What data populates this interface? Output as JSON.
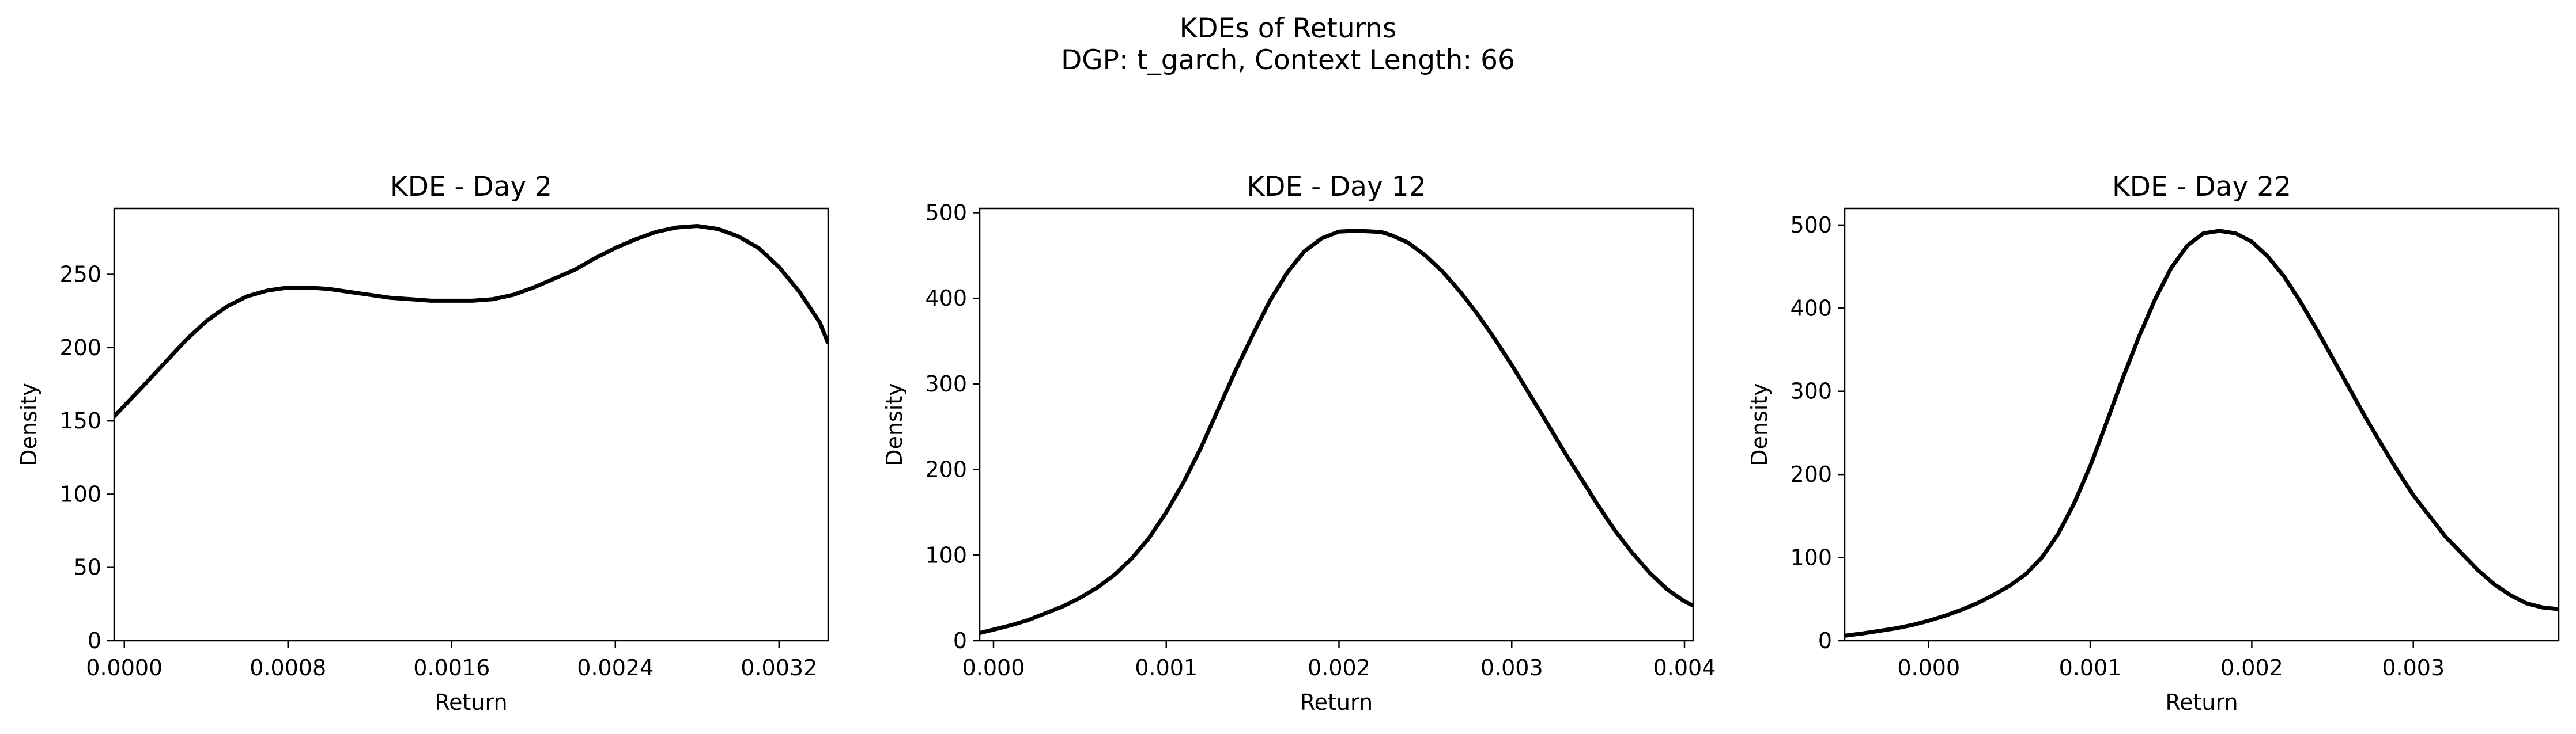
{
  "figure": {
    "title": "KDEs of Returns",
    "subtitle": "DGP: t_garch, Context Length: 66"
  },
  "chart_data": [
    {
      "type": "line",
      "title": "KDE - Day 2",
      "xlabel": "Return",
      "ylabel": "Density",
      "xlim": [
        -5e-05,
        0.00344
      ],
      "ylim": [
        0,
        295
      ],
      "xticks": [
        0.0,
        0.0008,
        0.0016,
        0.0024,
        0.0032
      ],
      "xtick_labels": [
        "0.0000",
        "0.0008",
        "0.0016",
        "0.0024",
        "0.0032"
      ],
      "yticks": [
        0,
        50,
        100,
        150,
        200,
        250
      ],
      "ytick_labels": [
        "0",
        "50",
        "100",
        "150",
        "200",
        "250"
      ],
      "series": [
        {
          "color": "#000000",
          "x": [
            -5e-05,
            0.0001,
            0.0002,
            0.0003,
            0.0004,
            0.0005,
            0.0006,
            0.0007,
            0.0008,
            0.0009,
            0.001,
            0.0011,
            0.0012,
            0.0013,
            0.0014,
            0.0015,
            0.0016,
            0.0017,
            0.0018,
            0.0019,
            0.002,
            0.0021,
            0.0022,
            0.0023,
            0.0024,
            0.0025,
            0.0026,
            0.0027,
            0.0028,
            0.0029,
            0.003,
            0.0031,
            0.0032,
            0.0033,
            0.0034,
            0.00344
          ],
          "y": [
            153,
            175,
            190,
            205,
            218,
            228,
            235,
            239,
            241,
            241,
            240,
            238,
            236,
            234,
            233,
            232,
            232,
            232,
            233,
            236,
            241,
            247,
            253,
            261,
            268,
            274,
            279,
            282,
            283,
            281,
            276,
            268,
            255,
            238,
            217,
            203
          ]
        }
      ]
    },
    {
      "type": "line",
      "title": "KDE - Day 12",
      "xlabel": "Return",
      "ylabel": "Density",
      "xlim": [
        -8e-05,
        0.00405
      ],
      "ylim": [
        0,
        505
      ],
      "xticks": [
        0.0,
        0.001,
        0.002,
        0.003,
        0.004
      ],
      "xtick_labels": [
        "0.000",
        "0.001",
        "0.002",
        "0.003",
        "0.004"
      ],
      "yticks": [
        0,
        100,
        200,
        300,
        400,
        500
      ],
      "ytick_labels": [
        "0",
        "100",
        "200",
        "300",
        "400",
        "500"
      ],
      "series": [
        {
          "color": "#000000",
          "x": [
            -8e-05,
            0.0,
            0.0001,
            0.0002,
            0.0003,
            0.0004,
            0.0005,
            0.0006,
            0.0007,
            0.0008,
            0.0009,
            0.001,
            0.0011,
            0.0012,
            0.0013,
            0.0014,
            0.0015,
            0.0016,
            0.0017,
            0.0018,
            0.0019,
            0.002,
            0.0021,
            0.0022,
            0.00225,
            0.0023,
            0.0024,
            0.0025,
            0.0026,
            0.0027,
            0.0028,
            0.0029,
            0.003,
            0.0031,
            0.0032,
            0.0033,
            0.0034,
            0.0035,
            0.0036,
            0.0037,
            0.0038,
            0.0039,
            0.004,
            0.00405
          ],
          "y": [
            9,
            13,
            18,
            24,
            32,
            40,
            50,
            62,
            77,
            96,
            120,
            150,
            185,
            225,
            270,
            315,
            357,
            397,
            430,
            455,
            470,
            478,
            479,
            478,
            477,
            474,
            465,
            450,
            431,
            408,
            382,
            353,
            322,
            289,
            256,
            222,
            190,
            158,
            128,
            102,
            79,
            60,
            46,
            41
          ]
        }
      ]
    },
    {
      "type": "line",
      "title": "KDE - Day 22",
      "xlabel": "Return",
      "ylabel": "Density",
      "xlim": [
        -0.00052,
        0.0039
      ],
      "ylim": [
        0,
        520
      ],
      "xticks": [
        0.0,
        0.001,
        0.002,
        0.003
      ],
      "xtick_labels": [
        "0.000",
        "0.001",
        "0.002",
        "0.003"
      ],
      "yticks": [
        0,
        100,
        200,
        300,
        400,
        500
      ],
      "ytick_labels": [
        "0",
        "100",
        "200",
        "300",
        "400",
        "500"
      ],
      "series": [
        {
          "color": "#000000",
          "x": [
            -0.00052,
            -0.0004,
            -0.0003,
            -0.0002,
            -0.0001,
            0.0,
            0.0001,
            0.0002,
            0.0003,
            0.0004,
            0.0005,
            0.0006,
            0.0007,
            0.0008,
            0.0009,
            0.001,
            0.0011,
            0.0012,
            0.0013,
            0.0014,
            0.0015,
            0.0016,
            0.0017,
            0.0018,
            0.0019,
            0.002,
            0.0021,
            0.0022,
            0.0023,
            0.0024,
            0.0025,
            0.0026,
            0.0027,
            0.0028,
            0.0029,
            0.003,
            0.0031,
            0.0032,
            0.0033,
            0.0034,
            0.0035,
            0.0036,
            0.0037,
            0.0038,
            0.0039
          ],
          "y": [
            6,
            9,
            12,
            15,
            19,
            24,
            30,
            37,
            45,
            55,
            66,
            80,
            100,
            128,
            165,
            210,
            262,
            315,
            365,
            410,
            448,
            475,
            490,
            493,
            490,
            480,
            462,
            438,
            408,
            375,
            340,
            305,
            270,
            237,
            205,
            175,
            150,
            125,
            105,
            85,
            68,
            55,
            45,
            40,
            38
          ]
        }
      ]
    }
  ]
}
